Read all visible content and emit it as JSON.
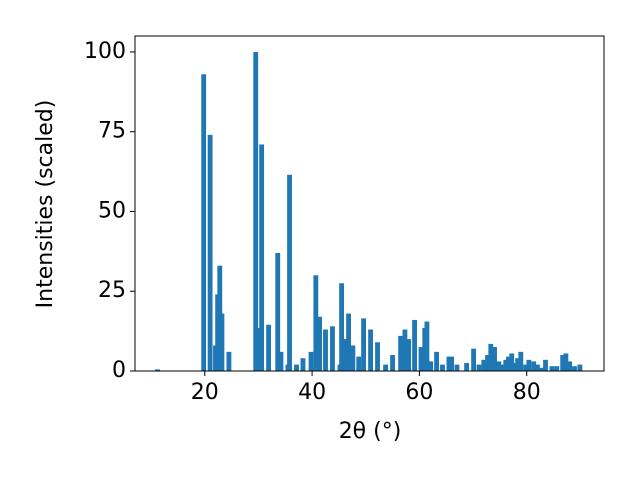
{
  "chart_data": {
    "type": "bar",
    "x_label": "2θ (°)",
    "y_label": "Intensities (scaled)",
    "x": [
      11.2,
      19.8,
      21.0,
      22.0,
      22.4,
      22.8,
      23.2,
      24.5,
      29.5,
      30.0,
      30.6,
      31.9,
      33.6,
      34.2,
      35.5,
      35.8,
      37.1,
      38.3,
      39.8,
      40.7,
      41.4,
      42.5,
      43.8,
      45.2,
      45.5,
      46.1,
      46.8,
      47.6,
      48.7,
      49.6,
      50.9,
      52.2,
      53.7,
      55.0,
      56.5,
      57.3,
      58.0,
      59.1,
      60.3,
      61.0,
      61.4,
      62.1,
      63.2,
      64.3,
      65.5,
      66.0,
      67.0,
      68.8,
      70.1,
      71.1,
      72.0,
      72.7,
      73.3,
      74.0,
      74.8,
      75.5,
      76.1,
      76.6,
      77.2,
      77.8,
      78.3,
      78.9,
      79.8,
      80.4,
      81.3,
      82.0,
      82.8,
      83.5,
      84.7,
      85.6,
      86.7,
      87.3,
      88.0,
      88.9,
      89.9
    ],
    "values": [
      0.5,
      93,
      74,
      8,
      24,
      33,
      18,
      6,
      100,
      13.5,
      71,
      14.5,
      37,
      6,
      2,
      61.5,
      2,
      4,
      6,
      30,
      17,
      13,
      14,
      2,
      27.5,
      10,
      18,
      8,
      4.5,
      16.5,
      13,
      9,
      2,
      5,
      11,
      13,
      10,
      16,
      7.5,
      13.5,
      15.5,
      3,
      6,
      2,
      4.5,
      4.5,
      2,
      2.5,
      7,
      2,
      3.5,
      5,
      8.5,
      7.5,
      3,
      2,
      3.5,
      4.5,
      5.5,
      2.5,
      4,
      6,
      2,
      3.5,
      3,
      2,
      1,
      3.5,
      1.5,
      1.5,
      5,
      5.5,
      3,
      1.5,
      2
    ],
    "color": "#1f77b4",
    "xlim": [
      7,
      94.4
    ],
    "xticks": [
      20,
      40,
      60,
      80
    ],
    "ylim": [
      0,
      105
    ],
    "yticks": [
      0,
      25,
      50,
      75,
      100
    ]
  }
}
